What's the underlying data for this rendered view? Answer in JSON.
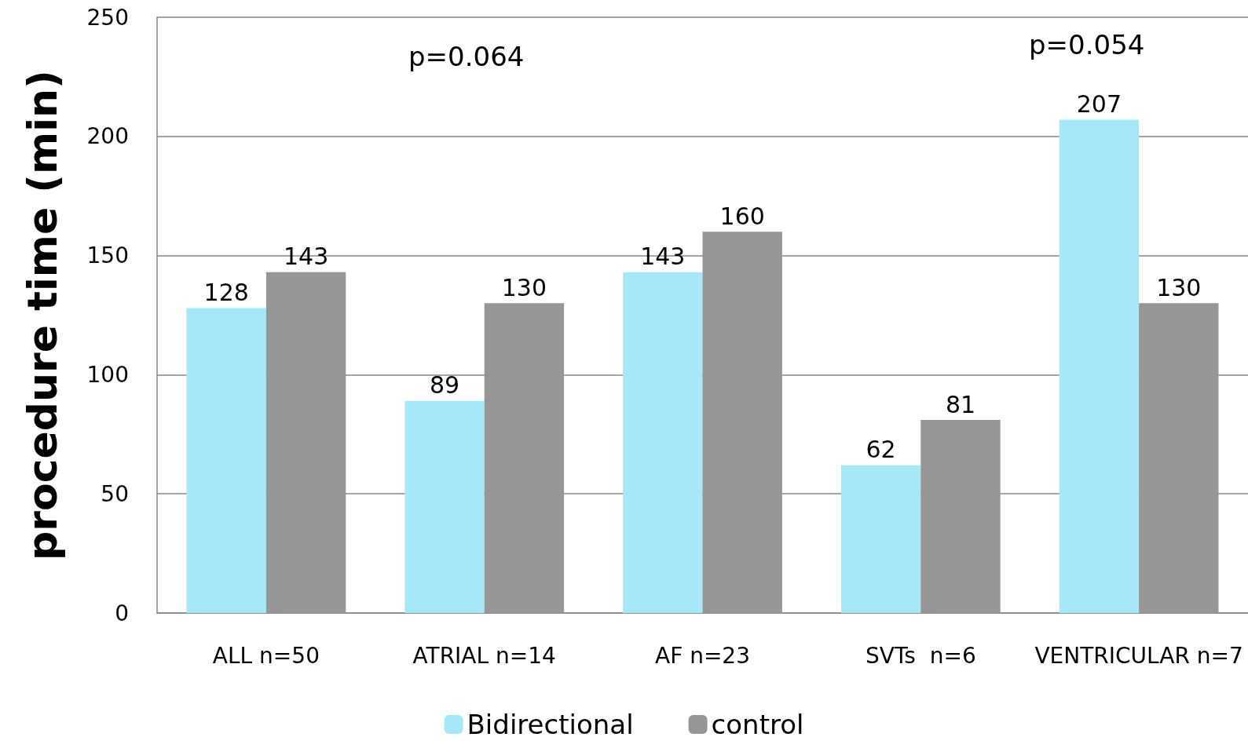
{
  "chart_data": {
    "type": "bar",
    "ylabel": "procedure time (min)",
    "categories": [
      "ALL n=50",
      "ATRIAL n=14",
      "AF n=23",
      "SVTs  n=6",
      "VENTRICULAR n=7"
    ],
    "series": [
      {
        "name": "Bidirectional",
        "color": "#a6e8f7",
        "values": [
          128,
          89,
          143,
          62,
          207
        ]
      },
      {
        "name": "control",
        "color": "#969696",
        "values": [
          143,
          130,
          160,
          81,
          130
        ]
      }
    ],
    "ylim": [
      0,
      250
    ],
    "yticks": [
      0,
      50,
      100,
      150,
      200,
      250
    ],
    "grid": "y",
    "legend": "bottom",
    "data_labels": true,
    "annotations": [
      "p=0.064",
      "p=0.054"
    ]
  }
}
